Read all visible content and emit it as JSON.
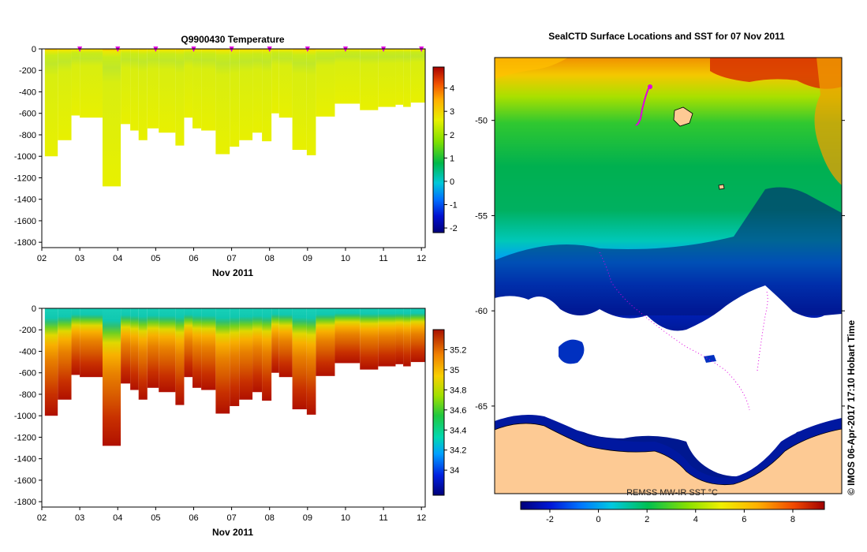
{
  "chart_data": [
    {
      "type": "heatmap",
      "id": "temperature",
      "title": "Q9900430  Temperature",
      "xlabel": "Nov 2011",
      "ylabel": "",
      "xlim": [
        2,
        12.1
      ],
      "ylim": [
        -1850,
        0
      ],
      "xticks": [
        "02",
        "03",
        "04",
        "05",
        "06",
        "07",
        "08",
        "09",
        "10",
        "11",
        "12"
      ],
      "yticks": [
        0,
        -200,
        -400,
        -600,
        -800,
        -1000,
        -1200,
        -1400,
        -1600,
        -1800
      ],
      "colorbar": {
        "min": -2.2,
        "max": 4.9,
        "ticks": [
          4,
          3,
          2,
          1,
          0,
          -1,
          -2
        ]
      },
      "surface_markers_day": [
        3,
        4,
        5,
        6,
        7,
        8,
        9,
        10,
        11,
        12
      ],
      "profiles": [
        {
          "x0": 2.08,
          "x1": 2.42,
          "depth": 1000
        },
        {
          "x0": 2.42,
          "x1": 2.78,
          "depth": 850
        },
        {
          "x0": 2.78,
          "x1": 3.0,
          "depth": 620
        },
        {
          "x0": 3.0,
          "x1": 3.6,
          "depth": 640
        },
        {
          "x0": 3.6,
          "x1": 4.08,
          "depth": 1280
        },
        {
          "x0": 4.08,
          "x1": 4.33,
          "depth": 700
        },
        {
          "x0": 4.33,
          "x1": 4.55,
          "depth": 760
        },
        {
          "x0": 4.55,
          "x1": 4.78,
          "depth": 850
        },
        {
          "x0": 4.78,
          "x1": 5.08,
          "depth": 740
        },
        {
          "x0": 5.08,
          "x1": 5.52,
          "depth": 780
        },
        {
          "x0": 5.52,
          "x1": 5.75,
          "depth": 900
        },
        {
          "x0": 5.75,
          "x1": 5.97,
          "depth": 640
        },
        {
          "x0": 5.97,
          "x1": 6.2,
          "depth": 740
        },
        {
          "x0": 6.2,
          "x1": 6.58,
          "depth": 760
        },
        {
          "x0": 6.58,
          "x1": 6.95,
          "depth": 980
        },
        {
          "x0": 6.95,
          "x1": 7.2,
          "depth": 910
        },
        {
          "x0": 7.2,
          "x1": 7.55,
          "depth": 850
        },
        {
          "x0": 7.55,
          "x1": 7.8,
          "depth": 780
        },
        {
          "x0": 7.8,
          "x1": 8.05,
          "depth": 860
        },
        {
          "x0": 8.05,
          "x1": 8.25,
          "depth": 600
        },
        {
          "x0": 8.25,
          "x1": 8.6,
          "depth": 640
        },
        {
          "x0": 8.6,
          "x1": 8.98,
          "depth": 940
        },
        {
          "x0": 8.98,
          "x1": 9.22,
          "depth": 990
        },
        {
          "x0": 9.22,
          "x1": 9.72,
          "depth": 630
        },
        {
          "x0": 9.72,
          "x1": 10.38,
          "depth": 510
        },
        {
          "x0": 10.38,
          "x1": 10.86,
          "depth": 570
        },
        {
          "x0": 10.86,
          "x1": 11.32,
          "depth": 540
        },
        {
          "x0": 11.32,
          "x1": 11.52,
          "depth": 520
        },
        {
          "x0": 11.52,
          "x1": 11.72,
          "depth": 540
        },
        {
          "x0": 11.72,
          "x1": 12.1,
          "depth": 500
        }
      ]
    },
    {
      "type": "heatmap",
      "id": "salinity",
      "title": "",
      "xlabel": "Nov 2011",
      "ylabel": "",
      "xlim": [
        2,
        12.1
      ],
      "ylim": [
        -1850,
        0
      ],
      "xticks": [
        "02",
        "03",
        "04",
        "05",
        "06",
        "07",
        "08",
        "09",
        "10",
        "11",
        "12"
      ],
      "yticks": [
        0,
        -200,
        -400,
        -600,
        -800,
        -1000,
        -1200,
        -1400,
        -1600,
        -1800
      ],
      "colorbar": {
        "min": 33.75,
        "max": 35.4,
        "ticks": [
          35.2,
          35,
          34.8,
          34.6,
          34.4,
          34.2,
          34
        ]
      }
    },
    {
      "type": "heatmap",
      "id": "sst_map",
      "title": "SealCTD Surface Locations and SST for 07 Nov 2011",
      "ylabel": "",
      "yticks": [
        -50,
        -55,
        -60,
        -65
      ],
      "ylim": [
        -69.6,
        -46.7
      ],
      "colorbar": {
        "label": "REMSS MW-IR SST °C",
        "min": -3.2,
        "max": 9.3,
        "ticks": [
          -2,
          0,
          2,
          4,
          6,
          8
        ]
      }
    }
  ],
  "watermark": "© IMOS 06-Apr-2017 17:10 Hobart Time",
  "colors": {
    "land": "#fdca94",
    "track": "#e000e0",
    "plot_border": "#000000"
  }
}
